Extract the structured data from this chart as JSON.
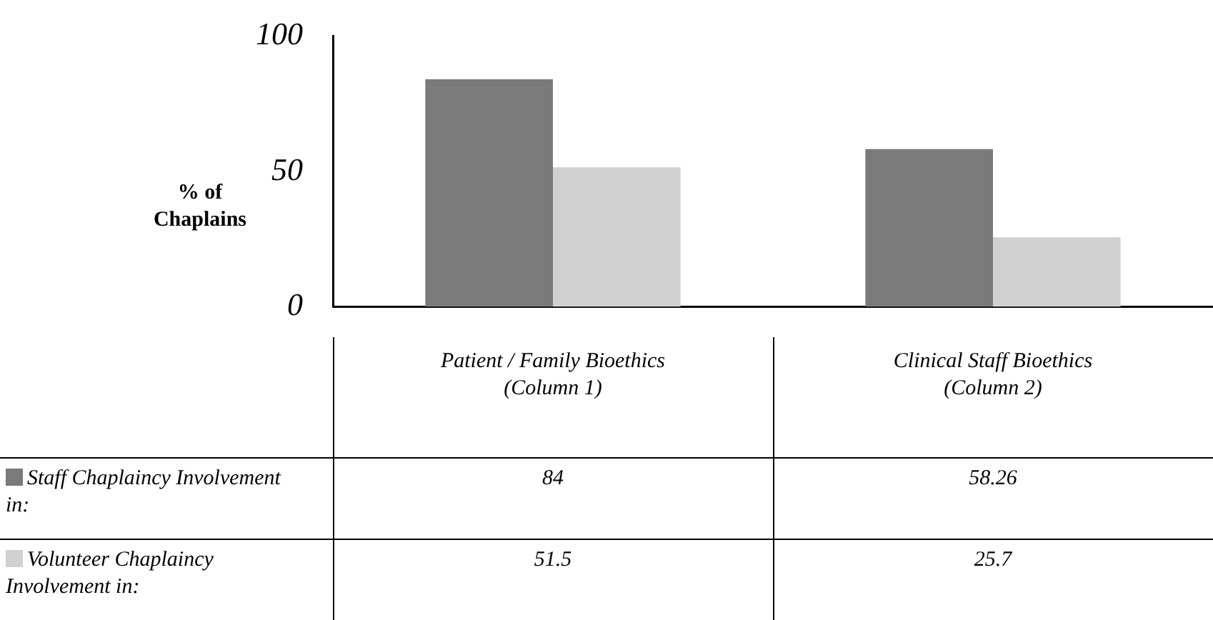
{
  "chart_data": {
    "type": "bar",
    "ylabel": "% of Chaplains",
    "categories": [
      "Patient / Family Bioethics (Column 1)",
      "Clinical Staff Bioethics (Column 2)"
    ],
    "series": [
      {
        "name": "Staff Chaplaincy Involvement in:",
        "color": "#7a7a7a",
        "values": [
          84,
          58.26
        ]
      },
      {
        "name": "Volunteer Chaplaincy Involvement in:",
        "color": "#d0d0d0",
        "values": [
          51.5,
          25.7
        ]
      }
    ],
    "ylim": [
      0,
      100
    ],
    "yticks": [
      0,
      50,
      100
    ],
    "data_labels": true,
    "legend": "bottom left"
  }
}
